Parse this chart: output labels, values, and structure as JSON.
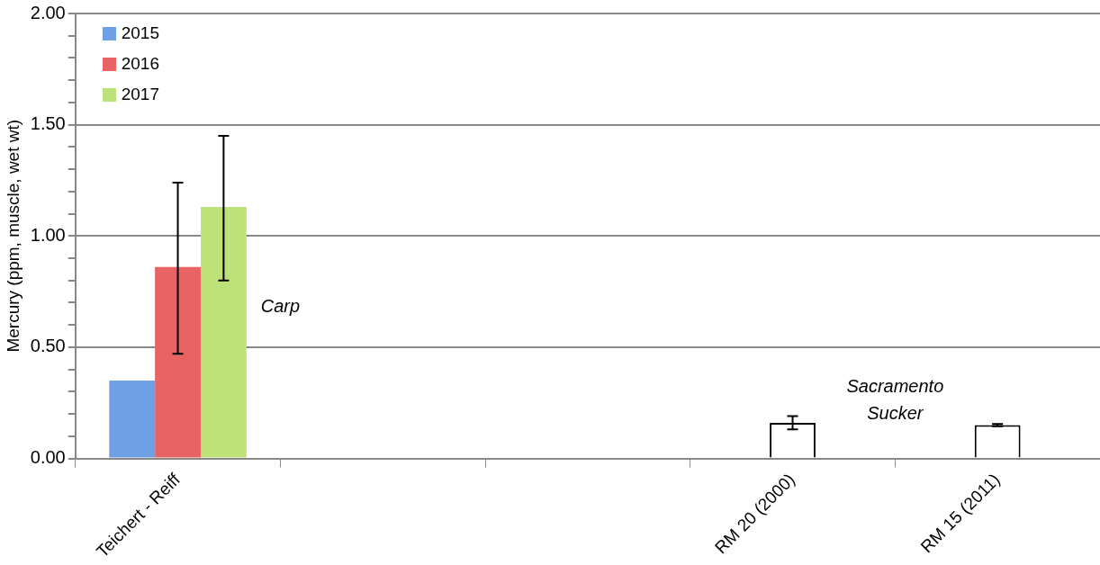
{
  "chart_data": {
    "type": "bar",
    "ylabel": "Mercury (ppm, muscle, wet wt)",
    "categories": [
      "Teichert - Reiff",
      null,
      null,
      "RM 20 (2000)",
      "RM 15 (2011)"
    ],
    "series": [
      {
        "name": "2015",
        "color": "#6fa0e6",
        "values": [
          0.35,
          null,
          null,
          null,
          null
        ]
      },
      {
        "name": "2016",
        "color": "#e86464",
        "values": [
          0.86,
          null,
          null,
          null,
          null
        ],
        "errors": [
          [
            0.47,
            1.24
          ],
          null,
          null,
          null,
          null
        ]
      },
      {
        "name": "2017",
        "color": "#bde27a",
        "values": [
          1.13,
          null,
          null,
          null,
          null
        ],
        "errors": [
          [
            0.8,
            1.45
          ],
          null,
          null,
          null,
          null
        ]
      },
      {
        "color": "#ffffff",
        "values": [
          null,
          null,
          null,
          0.16,
          0.15
        ],
        "errors": [
          null,
          null,
          null,
          [
            0.13,
            0.19
          ],
          [
            0.145,
            0.155
          ]
        ]
      }
    ],
    "ylim": [
      0,
      2
    ],
    "yticks": [
      {
        "value": 0,
        "label": "0.00"
      },
      {
        "value": 0.1,
        "label": null
      },
      {
        "value": 0.2,
        "label": null
      },
      {
        "value": 0.3,
        "label": null
      },
      {
        "value": 0.4,
        "label": null
      },
      {
        "value": 0.5,
        "label": "0.50"
      },
      {
        "value": 0.6,
        "label": null
      },
      {
        "value": 0.7,
        "label": null
      },
      {
        "value": 0.8,
        "label": null
      },
      {
        "value": 0.9,
        "label": null
      },
      {
        "value": 1,
        "label": "1.00"
      },
      {
        "value": 1.1,
        "label": null
      },
      {
        "value": 1.2,
        "label": null
      },
      {
        "value": 1.3,
        "label": null
      },
      {
        "value": 1.4,
        "label": null
      },
      {
        "value": 1.5,
        "label": "1.50"
      },
      {
        "value": 1.6,
        "label": null
      },
      {
        "value": 1.7,
        "label": null
      },
      {
        "value": 1.8,
        "label": null
      },
      {
        "value": 1.9,
        "label": null
      },
      {
        "value": 2,
        "label": "2.00"
      }
    ],
    "grid": "y",
    "legend": "top left",
    "annotations": [
      "Carp",
      "Sacramento Sucker"
    ]
  }
}
